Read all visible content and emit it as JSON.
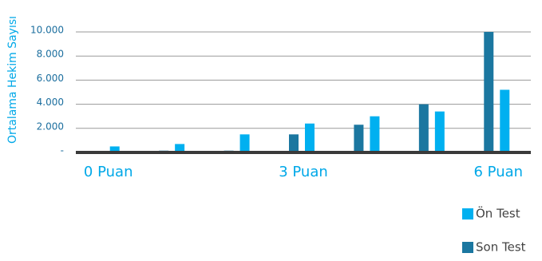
{
  "chart_data": {
    "type": "bar",
    "y_label": "Ortalama Hekim Sayısı",
    "categories": [
      "0 Puan",
      null,
      null,
      "3 Puan",
      null,
      null,
      "6 Puan"
    ],
    "series": [
      {
        "name": "Ön Test",
        "color": "#00b0f0",
        "values": [
          500,
          700,
          1500,
          2400,
          3000,
          3400,
          5200
        ]
      },
      {
        "name": "Son Test",
        "color": "#1b77a0",
        "values": [
          100,
          150,
          150,
          1500,
          2300,
          4000,
          10000
        ]
      }
    ],
    "ylim": [
      0,
      10000
    ],
    "yticks": [
      {
        "value": 0,
        "label": "-"
      },
      {
        "value": 2000,
        "label": "2.000"
      },
      {
        "value": 4000,
        "label": "4.000"
      },
      {
        "value": 6000,
        "label": "6.000"
      },
      {
        "value": 8000,
        "label": "8.000"
      },
      {
        "value": 10000,
        "label": "10.000"
      }
    ],
    "grid": true
  }
}
